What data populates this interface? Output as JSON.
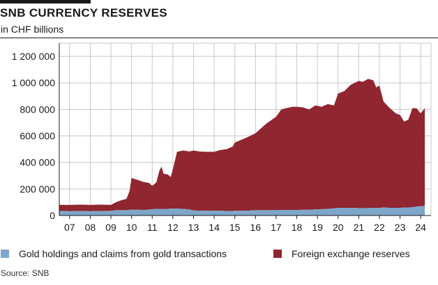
{
  "header": {
    "title": "SNB CURRENCY RESERVES",
    "subtitle": "in CHF billions"
  },
  "source": "Source: SNB",
  "colors": {
    "gold": "#7da6c8",
    "fx": "#8f2630",
    "grid": "#c8c8c8",
    "axis": "#1a1a1a"
  },
  "chart_data": {
    "type": "area",
    "stacked": true,
    "title": "SNB CURRENCY RESERVES",
    "subtitle": "in CHF billions",
    "xlabel": "",
    "ylabel": "",
    "xlim": [
      2006.5,
      2024.5
    ],
    "ylim": [
      0,
      1300000
    ],
    "y_ticks": [
      0,
      200000,
      400000,
      600000,
      800000,
      1000000,
      1200000
    ],
    "y_tick_labels": [
      "0",
      "200 000",
      "400 000",
      "600 000",
      "800 000",
      "1 000 000",
      "1 200 000"
    ],
    "x_ticks": [
      2007.0,
      2008.0,
      2009.0,
      2010.0,
      2011.0,
      2012.0,
      2013.0,
      2014.0,
      2015.0,
      2016.0,
      2017.0,
      2018.0,
      2019.0,
      2020.0,
      2021.0,
      2022.0,
      2023.0,
      2024.0
    ],
    "x_tick_labels": [
      "07",
      "08",
      "09",
      "10",
      "11",
      "12",
      "13",
      "14",
      "15",
      "16",
      "17",
      "18",
      "19",
      "20",
      "21",
      "22",
      "23",
      "24"
    ],
    "legend_position": "bottom",
    "grid": true,
    "x": [
      2006.5,
      2007.0,
      2007.5,
      2008.0,
      2008.5,
      2009.0,
      2009.25,
      2009.5,
      2009.75,
      2009.9,
      2010.0,
      2010.3,
      2010.6,
      2010.85,
      2011.0,
      2011.2,
      2011.35,
      2011.45,
      2011.55,
      2011.75,
      2011.9,
      2012.05,
      2012.2,
      2012.5,
      2012.8,
      2013.0,
      2013.3,
      2013.6,
      2014.0,
      2014.3,
      2014.6,
      2014.9,
      2015.0,
      2015.3,
      2015.6,
      2016.0,
      2016.5,
      2017.0,
      2017.25,
      2017.5,
      2017.8,
      2018.0,
      2018.3,
      2018.6,
      2018.9,
      2019.2,
      2019.5,
      2019.8,
      2020.0,
      2020.3,
      2020.6,
      2020.9,
      2021.0,
      2021.2,
      2021.45,
      2021.7,
      2021.85,
      2022.0,
      2022.2,
      2022.5,
      2022.8,
      2023.0,
      2023.2,
      2023.4,
      2023.6,
      2023.8,
      2024.0,
      2024.2
    ],
    "series": [
      {
        "name": "Gold holdings and claims from gold transactions",
        "values": [
          35000,
          32000,
          35000,
          32000,
          34000,
          35000,
          40000,
          40000,
          40000,
          43000,
          43000,
          43000,
          42000,
          45000,
          48000,
          50000,
          50000,
          48000,
          50000,
          50000,
          52000,
          52000,
          52000,
          50000,
          45000,
          38000,
          36000,
          36000,
          36000,
          36000,
          34000,
          34000,
          36000,
          36000,
          36000,
          40000,
          40000,
          40000,
          42000,
          42000,
          42000,
          42000,
          43000,
          43000,
          46000,
          48000,
          50000,
          54000,
          58000,
          58000,
          57000,
          57000,
          55000,
          56000,
          56000,
          57000,
          57000,
          57000,
          60000,
          58000,
          57000,
          58000,
          60000,
          60000,
          62000,
          68000,
          70000,
          72000
        ]
      },
      {
        "name": "Foreign exchange reserves",
        "values": [
          45000,
          48000,
          47000,
          48000,
          48000,
          45000,
          60000,
          75000,
          85000,
          140000,
          240000,
          225000,
          210000,
          200000,
          175000,
          200000,
          290000,
          320000,
          265000,
          260000,
          238000,
          328000,
          428000,
          440000,
          438000,
          452000,
          446000,
          444000,
          444000,
          458000,
          466000,
          486000,
          514000,
          534000,
          554000,
          580000,
          650000,
          705000,
          758000,
          768000,
          778000,
          778000,
          772000,
          757000,
          784000,
          772000,
          790000,
          776000,
          862000,
          880000,
          927000,
          951000,
          960000,
          952000,
          974000,
          963000,
          908000,
          923000,
          800000,
          752000,
          713000,
          700000,
          648000,
          663000,
          748000,
          740000,
          700000,
          738000
        ]
      }
    ]
  }
}
